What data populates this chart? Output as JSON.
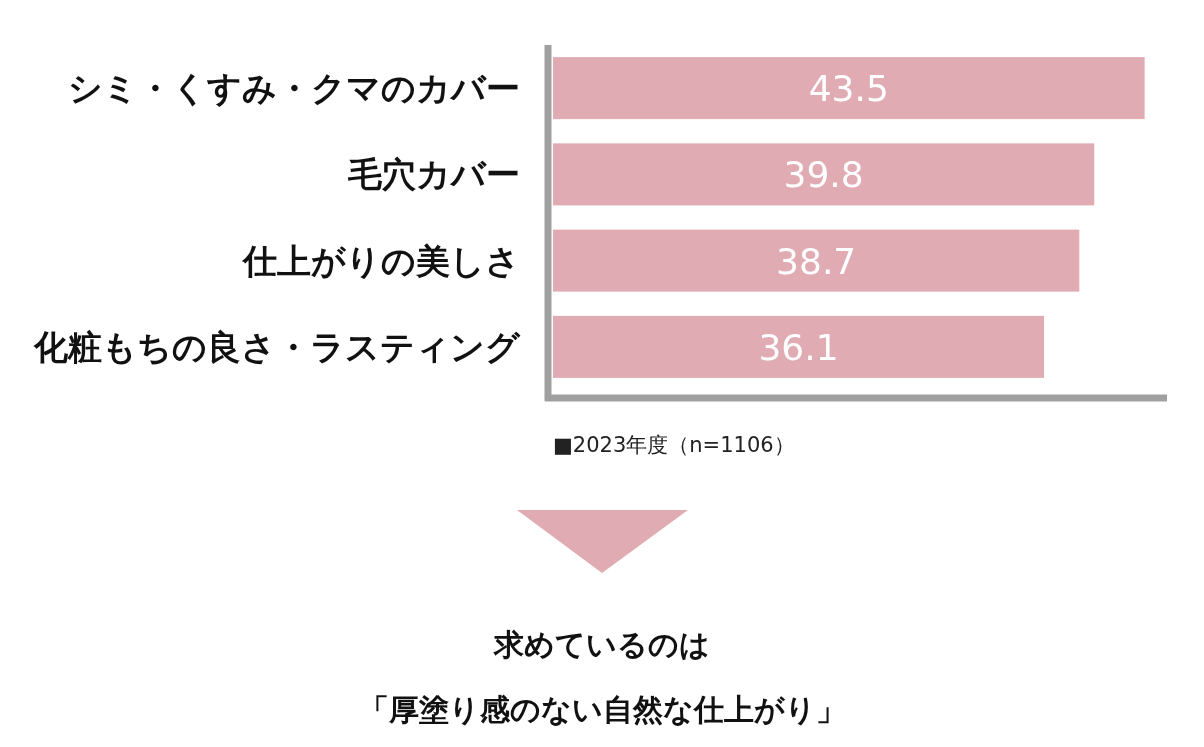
{
  "chart_data": {
    "type": "bar",
    "orientation": "horizontal",
    "categories": [
      "シミ・くすみ・クマのカバー",
      "毛穴カバー",
      "仕上がりの美しさ",
      "化粧もちの良さ・ラスティング"
    ],
    "values": [
      43.5,
      39.8,
      38.7,
      36.1
    ],
    "color": "#e0abb2",
    "data_labels": true,
    "xlim": [
      0,
      45
    ],
    "annotations": [
      "■2023年度（n=1106）",
      "求めているのは",
      "「厚塗り感のない自然な仕上がり」"
    ]
  }
}
